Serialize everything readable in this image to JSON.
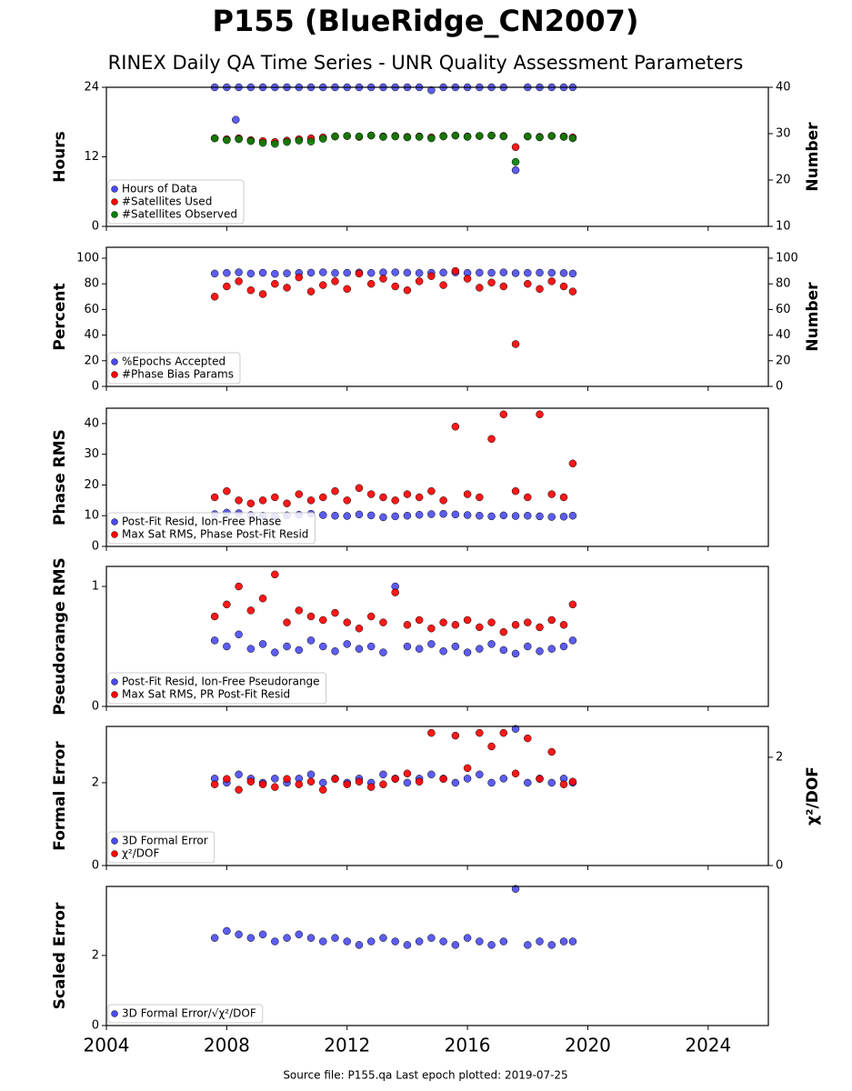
{
  "title": "P155 (BlueRidge_CN2007)",
  "subtitle": "RINEX Daily QA Time Series - UNR Quality Assessment Parameters",
  "footer": "Source file: P155.qa Last epoch plotted: 2019-07-25",
  "chart_data": [
    {
      "type": "scatter",
      "ylabel": "Hours",
      "y2label": "Number",
      "legend": "lower left",
      "xtick_labels": false,
      "xlim": [
        2004,
        2026
      ],
      "xticks": [
        2004,
        2008,
        2012,
        2016,
        2020,
        2024
      ],
      "ylim": [
        0,
        24
      ],
      "yticks": [
        0,
        12,
        24
      ],
      "y2lim": [
        10,
        40
      ],
      "y2ticks": [
        10,
        20,
        30,
        40
      ],
      "x": [
        2007.6,
        2008.0,
        2008.3,
        2008.4,
        2008.8,
        2009.2,
        2009.6,
        2010.0,
        2010.4,
        2010.8,
        2011.2,
        2011.6,
        2012.0,
        2012.4,
        2012.8,
        2013.2,
        2013.6,
        2014.0,
        2014.4,
        2014.8,
        2015.2,
        2015.6,
        2016.0,
        2016.4,
        2016.8,
        2017.2,
        2017.6,
        2018.0,
        2018.4,
        2018.8,
        2019.2,
        2019.5
      ],
      "series": [
        {
          "name": "Hours of Data",
          "color": "#4b4bef",
          "values": [
            24,
            24,
            18.4,
            24,
            24,
            24,
            24,
            24,
            24,
            24,
            24,
            24,
            24,
            24,
            24,
            24,
            24,
            24,
            24,
            23.5,
            24,
            24,
            24,
            24,
            24,
            24,
            9.7,
            24,
            24,
            24,
            24,
            24
          ]
        },
        {
          "name": "#Satellites Used",
          "color": "#ff0000",
          "axis": "y2",
          "values": [
            29,
            28.8,
            null,
            29,
            28.6,
            28.4,
            28.2,
            28.5,
            28.8,
            29,
            29.2,
            29.4,
            29.5,
            29.3,
            29.6,
            29.4,
            29.5,
            29.3,
            29.4,
            29.2,
            29.5,
            29.6,
            29.4,
            29.5,
            29.6,
            29.5,
            27.1,
            29.4,
            29.3,
            29.5,
            29.4,
            29.2
          ]
        },
        {
          "name": "#Satellites Observed",
          "color": "#008000",
          "axis": "y2",
          "values": [
            29,
            28.6,
            null,
            28.8,
            28.4,
            28,
            27.8,
            28.2,
            28.5,
            28.3,
            28.9,
            29.4,
            29.5,
            29.4,
            29.6,
            29.3,
            29.4,
            29.2,
            29.3,
            29,
            29.4,
            29.6,
            29.3,
            29.5,
            29.6,
            29.4,
            23.9,
            29.4,
            29.2,
            29.5,
            29.3,
            29
          ]
        }
      ]
    },
    {
      "type": "scatter",
      "ylabel": "Percent",
      "y2label": "Number",
      "legend": "lower left",
      "xtick_labels": false,
      "xlim": [
        2004,
        2026
      ],
      "xticks": [
        2004,
        2008,
        2012,
        2016,
        2020,
        2024
      ],
      "ylim": [
        0,
        108.5
      ],
      "yticks": [
        0,
        20,
        40,
        60,
        80,
        100
      ],
      "y2lim": [
        0,
        108.5
      ],
      "y2ticks": [
        0,
        20,
        40,
        60,
        80,
        100
      ],
      "x": [
        2007.6,
        2008.0,
        2008.4,
        2008.8,
        2009.2,
        2009.6,
        2010.0,
        2010.4,
        2010.8,
        2011.2,
        2011.6,
        2012.0,
        2012.4,
        2012.8,
        2013.2,
        2013.6,
        2014.0,
        2014.4,
        2014.8,
        2015.2,
        2015.6,
        2016.0,
        2016.4,
        2016.8,
        2017.2,
        2017.6,
        2018.0,
        2018.4,
        2018.8,
        2019.2,
        2019.5
      ],
      "series": [
        {
          "name": "%Epochs Accepted",
          "color": "#4b4bef",
          "values": [
            88,
            88.5,
            89,
            88,
            88.6,
            87.8,
            88.2,
            88.5,
            88.7,
            89,
            88.4,
            88.6,
            88.8,
            88.5,
            88.9,
            89,
            88.7,
            88.4,
            88.6,
            88.8,
            88.9,
            88.5,
            88.7,
            88.6,
            88.9,
            88.3,
            88.5,
            88.7,
            88.6,
            88.4,
            88
          ]
        },
        {
          "name": "#Phase Bias Params",
          "color": "#ff0000",
          "axis": "y2",
          "values": [
            70,
            78,
            82,
            75,
            72,
            80,
            77,
            85,
            74,
            79,
            82,
            76,
            88,
            80,
            84,
            78,
            75,
            82,
            86,
            79,
            90,
            84,
            77,
            81,
            78,
            33,
            80,
            76,
            82,
            78,
            74
          ]
        }
      ]
    },
    {
      "type": "scatter",
      "ylabel": "Phase RMS",
      "legend": "lower left",
      "xtick_labels": false,
      "xlim": [
        2004,
        2026
      ],
      "xticks": [
        2004,
        2008,
        2012,
        2016,
        2020,
        2024
      ],
      "ylim": [
        0,
        45
      ],
      "yticks": [
        0,
        10,
        20,
        30,
        40
      ],
      "x": [
        2007.6,
        2008.0,
        2008.4,
        2008.8,
        2009.2,
        2009.6,
        2010.0,
        2010.4,
        2010.8,
        2011.2,
        2011.6,
        2012.0,
        2012.4,
        2012.8,
        2013.2,
        2013.6,
        2014.0,
        2014.4,
        2014.8,
        2015.2,
        2015.6,
        2016.0,
        2016.4,
        2016.8,
        2017.2,
        2017.6,
        2018.0,
        2018.4,
        2018.8,
        2019.2,
        2019.5
      ],
      "series": [
        {
          "name": "Post-Fit Resid, Ion-Free Phase",
          "color": "#4b4bef",
          "values": [
            10.5,
            11,
            10.8,
            10.2,
            10,
            9.8,
            10.1,
            10.3,
            10.6,
            10.2,
            10,
            9.9,
            10.4,
            10.1,
            9.5,
            9.8,
            10,
            10.3,
            10.5,
            10.6,
            10.4,
            10.2,
            10,
            9.8,
            10.1,
            9.9,
            10,
            9.8,
            9.6,
            9.7,
            10
          ]
        },
        {
          "name": "Max Sat RMS, Phase Post-Fit Resid",
          "color": "#ff0000",
          "values": [
            16,
            18,
            15,
            14,
            15,
            16,
            14,
            17,
            15,
            16,
            18,
            15,
            19,
            17,
            16,
            15,
            17,
            16,
            18,
            15,
            39,
            17,
            16,
            35,
            43,
            18,
            16,
            43,
            17,
            16,
            27
          ]
        }
      ]
    },
    {
      "type": "scatter",
      "ylabel": "Pseudorange RMS",
      "legend": "lower left",
      "xtick_labels": false,
      "xlim": [
        2004,
        2026
      ],
      "xticks": [
        2004,
        2008,
        2012,
        2016,
        2020,
        2024
      ],
      "ylim": [
        0,
        1.167
      ],
      "yticks": [
        0,
        1
      ],
      "x": [
        2007.6,
        2008.0,
        2008.4,
        2008.8,
        2009.2,
        2009.6,
        2010.0,
        2010.4,
        2010.8,
        2011.2,
        2011.6,
        2012.0,
        2012.4,
        2012.8,
        2013.2,
        2013.6,
        2014.0,
        2014.4,
        2014.8,
        2015.2,
        2015.6,
        2016.0,
        2016.4,
        2016.8,
        2017.2,
        2017.6,
        2018.0,
        2018.4,
        2018.8,
        2019.2,
        2019.5
      ],
      "series": [
        {
          "name": "Post-Fit Resid, Ion-Free Pseudorange",
          "color": "#4b4bef",
          "values": [
            0.55,
            0.5,
            0.6,
            0.48,
            0.52,
            0.45,
            0.5,
            0.47,
            0.55,
            0.5,
            0.46,
            0.52,
            0.48,
            0.5,
            0.45,
            1.0,
            0.5,
            0.48,
            0.52,
            0.46,
            0.5,
            0.45,
            0.48,
            0.52,
            0.47,
            0.44,
            0.5,
            0.46,
            0.48,
            0.5,
            0.55
          ]
        },
        {
          "name": "Max Sat RMS, PR Post-Fit Resid",
          "color": "#ff0000",
          "values": [
            0.75,
            0.85,
            1.0,
            0.8,
            0.9,
            1.1,
            0.7,
            0.8,
            0.75,
            0.72,
            0.78,
            0.7,
            0.65,
            0.75,
            0.7,
            0.95,
            0.68,
            0.72,
            0.65,
            0.7,
            0.68,
            0.72,
            0.66,
            0.7,
            0.62,
            0.68,
            0.7,
            0.66,
            0.72,
            0.68,
            0.85
          ]
        }
      ]
    },
    {
      "type": "scatter",
      "ylabel": "Formal Error",
      "y2label": "χ²/DOF",
      "legend": "lower left",
      "xtick_labels": false,
      "xlim": [
        2004,
        2026
      ],
      "xticks": [
        2004,
        2008,
        2012,
        2016,
        2020,
        2024
      ],
      "ylim": [
        0,
        3.36
      ],
      "yticks": [
        0,
        2
      ],
      "y2lim": [
        0,
        2.57
      ],
      "y2ticks": [
        0,
        2
      ],
      "x": [
        2007.6,
        2008.0,
        2008.4,
        2008.8,
        2009.2,
        2009.6,
        2010.0,
        2010.4,
        2010.8,
        2011.2,
        2011.6,
        2012.0,
        2012.4,
        2012.8,
        2013.2,
        2013.6,
        2014.0,
        2014.4,
        2014.8,
        2015.2,
        2015.6,
        2016.0,
        2016.4,
        2016.8,
        2017.2,
        2017.6,
        2018.0,
        2018.4,
        2018.8,
        2019.2,
        2019.5
      ],
      "series": [
        {
          "name": "3D Formal Error",
          "color": "#4b4bef",
          "values": [
            2.1,
            2.0,
            2.2,
            2.1,
            2.0,
            2.1,
            2.0,
            2.1,
            2.2,
            2.0,
            2.1,
            2.0,
            2.1,
            2.0,
            2.2,
            2.1,
            2.0,
            2.1,
            2.2,
            2.1,
            2.0,
            2.1,
            2.2,
            2.0,
            2.1,
            3.3,
            2.0,
            2.1,
            2.0,
            2.1,
            2.0
          ]
        },
        {
          "name": "χ²/DOF",
          "color": "#ff0000",
          "axis": "y2",
          "values": [
            1.5,
            1.6,
            1.4,
            1.55,
            1.5,
            1.45,
            1.6,
            1.5,
            1.55,
            1.4,
            1.6,
            1.5,
            1.55,
            1.45,
            1.5,
            1.6,
            1.7,
            1.55,
            2.45,
            1.6,
            2.4,
            1.8,
            2.45,
            2.2,
            2.45,
            1.7,
            2.35,
            1.6,
            2.1,
            1.5,
            1.55
          ]
        }
      ]
    },
    {
      "type": "scatter",
      "ylabel": "Scaled Error",
      "legend": "lower left",
      "xtick_labels": true,
      "xlim": [
        2004,
        2026
      ],
      "xticks": [
        2004,
        2008,
        2012,
        2016,
        2020,
        2024
      ],
      "ylim": [
        0,
        3.97
      ],
      "yticks": [
        0,
        2
      ],
      "x": [
        2007.6,
        2008.0,
        2008.4,
        2008.8,
        2009.2,
        2009.6,
        2010.0,
        2010.4,
        2010.8,
        2011.2,
        2011.6,
        2012.0,
        2012.4,
        2012.8,
        2013.2,
        2013.6,
        2014.0,
        2014.4,
        2014.8,
        2015.2,
        2015.6,
        2016.0,
        2016.4,
        2016.8,
        2017.2,
        2017.6,
        2018.0,
        2018.4,
        2018.8,
        2019.2,
        2019.5
      ],
      "series": [
        {
          "name": "3D Formal Error/√χ²/DOF",
          "color": "#4b4bef",
          "values": [
            2.5,
            2.7,
            2.6,
            2.5,
            2.6,
            2.4,
            2.5,
            2.6,
            2.5,
            2.4,
            2.5,
            2.4,
            2.3,
            2.4,
            2.5,
            2.4,
            2.3,
            2.4,
            2.5,
            2.4,
            2.3,
            2.5,
            2.4,
            2.3,
            2.4,
            3.9,
            2.3,
            2.4,
            2.3,
            2.4,
            2.4
          ]
        }
      ]
    }
  ]
}
